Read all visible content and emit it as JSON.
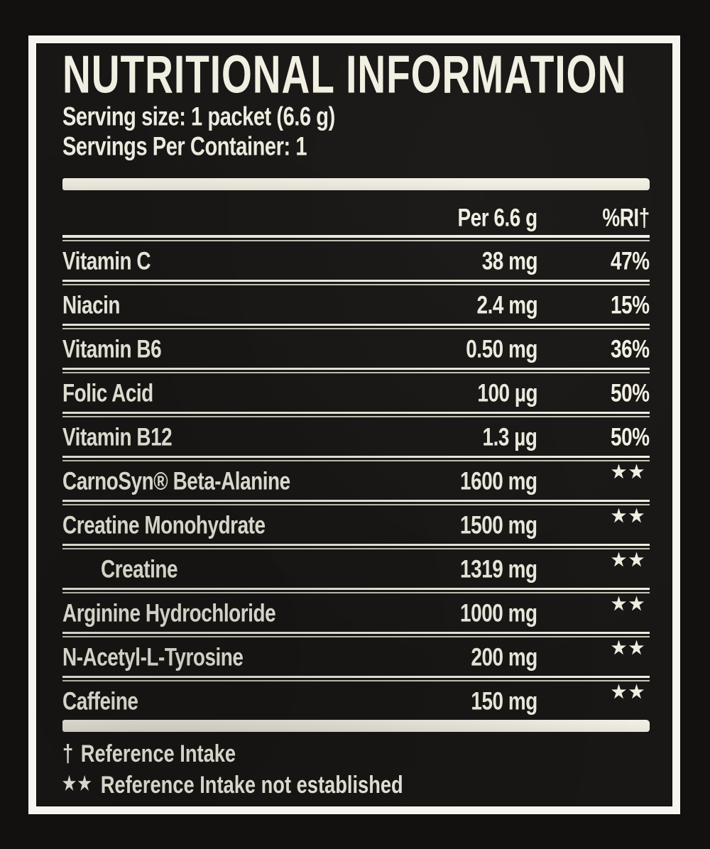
{
  "label": {
    "title": "NUTRITIONAL INFORMATION",
    "serving_size": "Serving size: 1 packet (6.6 g)",
    "servings_per_container": "Servings Per Container: 1",
    "columns": {
      "amount": "Per 6.6 g",
      "rdi": "%RI†"
    },
    "rows": [
      {
        "name": "Vitamin C",
        "amount": "38 mg",
        "rdi": "47%"
      },
      {
        "name": "Niacin",
        "amount": "2.4 mg",
        "rdi": "15%"
      },
      {
        "name": "Vitamin B6",
        "amount": "0.50 mg",
        "rdi": "36%"
      },
      {
        "name": "Folic Acid",
        "amount": "100 µg",
        "rdi": "50%"
      },
      {
        "name": "Vitamin B12",
        "amount": "1.3 µg",
        "rdi": "50%"
      },
      {
        "name": "CarnoSyn® Beta-Alanine",
        "amount": "1600 mg",
        "rdi": "★★"
      },
      {
        "name": "Creatine Monohydrate",
        "amount": "1500 mg",
        "rdi": "★★"
      },
      {
        "name": "Creatine",
        "amount": "1319 mg",
        "rdi": "★★"
      },
      {
        "name": "Arginine Hydrochloride",
        "amount": "1000 mg",
        "rdi": "★★"
      },
      {
        "name": "N-Acetyl-L-Tyrosine",
        "amount": "200 mg",
        "rdi": "★★"
      },
      {
        "name": "Caffeine",
        "amount": "150 mg",
        "rdi": "★★"
      }
    ],
    "footnotes": [
      {
        "marker": "†",
        "text": "Reference Intake"
      },
      {
        "marker": "★★",
        "text": "Reference Intake not established"
      }
    ],
    "colors": {
      "ink": "#f2efe3",
      "panel": "#191715",
      "background": "#131110",
      "frame": "#f7f5ef"
    }
  }
}
